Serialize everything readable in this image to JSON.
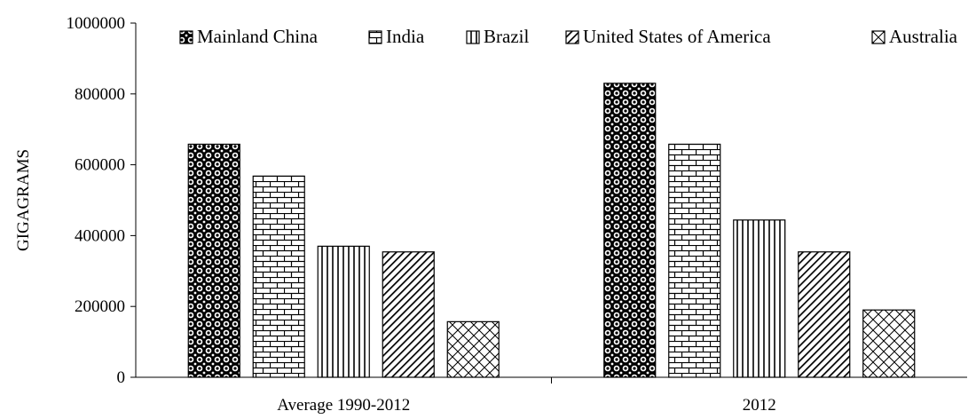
{
  "chart_data": {
    "type": "bar",
    "categories": [
      "Average 1990-2012",
      "2012"
    ],
    "series": [
      {
        "name": "Mainland China",
        "values": [
          658000,
          830000
        ],
        "pattern": "dots-dark"
      },
      {
        "name": "India",
        "values": [
          568000,
          658000
        ],
        "pattern": "brick"
      },
      {
        "name": "Brazil",
        "values": [
          370000,
          444000
        ],
        "pattern": "vertical-lines"
      },
      {
        "name": "United States of America",
        "values": [
          354000,
          354000
        ],
        "pattern": "diagonal-lines"
      },
      {
        "name": "Australia",
        "values": [
          157000,
          190000
        ],
        "pattern": "crosshatch"
      }
    ],
    "title": "",
    "xlabel": "",
    "ylabel": "GIGAGRAMS",
    "ylim": [
      0,
      1000000
    ],
    "yticks": [
      0,
      200000,
      400000,
      600000,
      800000,
      1000000
    ],
    "ytick_labels": [
      "0",
      "200000",
      "400000",
      "600000",
      "800000",
      "1000000"
    ],
    "grid": false,
    "legend_position": "top"
  }
}
